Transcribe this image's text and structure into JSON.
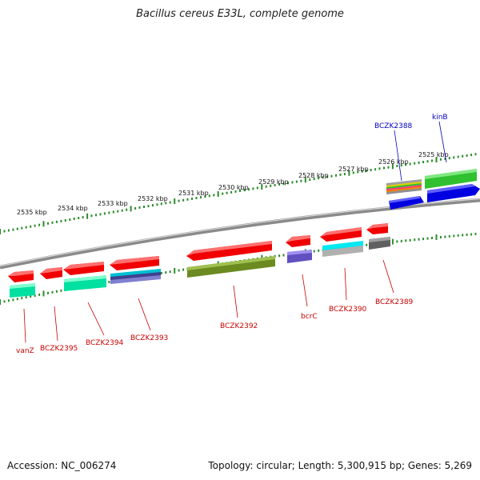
{
  "title": "Bacillus cereus E33L, complete genome",
  "accession": "Accession: NC_006274",
  "topology": "Topology: circular; Length: 5,300,915 bp; Genes: 5,269",
  "kbp_labels": [
    "2535 kbp",
    "2534 kbp",
    "2533 kbp",
    "2532 kbp",
    "2531 kbp",
    "2530 kbp",
    "2529 kbp",
    "2528 kbp",
    "2527 kbp",
    "2526 kbp",
    "2525 kbp"
  ],
  "top_genes": [
    {
      "name": "BCZK2388",
      "color": "#0000c0"
    },
    {
      "name": "kinB",
      "color": "#0000c0"
    }
  ],
  "bottom_genes": [
    {
      "name": "vanZ",
      "color": "#cc0000"
    },
    {
      "name": "BCZK2395",
      "color": "#cc0000"
    },
    {
      "name": "BCZK2394",
      "color": "#cc0000"
    },
    {
      "name": "BCZK2393",
      "color": "#cc0000"
    },
    {
      "name": "BCZK2392",
      "color": "#cc0000"
    },
    {
      "name": "bcrC",
      "color": "#cc0000"
    },
    {
      "name": "BCZK2390",
      "color": "#cc0000"
    },
    {
      "name": "BCZK2389",
      "color": "#cc0000"
    }
  ]
}
